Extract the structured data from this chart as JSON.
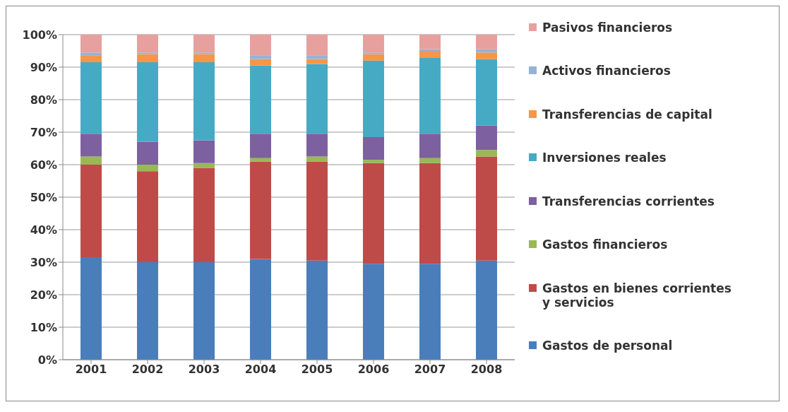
{
  "chart_data": {
    "type": "bar",
    "stacked": true,
    "categories": [
      "2001",
      "2002",
      "2003",
      "2004",
      "2005",
      "2006",
      "2007",
      "2008"
    ],
    "series": [
      {
        "name": "Gastos de personal",
        "color": "#4a7ebb",
        "values": [
          31.5,
          30,
          30,
          31,
          30.5,
          29.5,
          29.5,
          30.5
        ]
      },
      {
        "name": "Gastos en bienes corrientes y servicios",
        "color": "#be4b48",
        "values": [
          28.5,
          28,
          29,
          30,
          30.5,
          31,
          31,
          32
        ]
      },
      {
        "name": "Gastos financieros",
        "color": "#98b954",
        "values": [
          2.5,
          2,
          1.5,
          1,
          1.5,
          1,
          1.5,
          2
        ]
      },
      {
        "name": "Transferencias corrientes",
        "color": "#7d60a0",
        "values": [
          7,
          7,
          7,
          7.5,
          7,
          7,
          7.5,
          7.5
        ]
      },
      {
        "name": "Inversiones reales",
        "color": "#46aac5",
        "values": [
          22,
          24.5,
          24,
          21,
          21.5,
          23.5,
          23.5,
          20.5
        ]
      },
      {
        "name": "Transferencias de capital",
        "color": "#f79646",
        "values": [
          2,
          2.5,
          2.5,
          2,
          1.5,
          2,
          2,
          2
        ]
      },
      {
        "name": "Activos financieros",
        "color": "#95b3d7",
        "values": [
          1,
          0.5,
          0.5,
          1,
          1,
          0.5,
          0.5,
          1
        ]
      },
      {
        "name": "Pasivos financieros",
        "color": "#e6a09e",
        "values": [
          5.5,
          5.5,
          5.5,
          6.5,
          6.5,
          5.5,
          4.5,
          4.5
        ]
      }
    ],
    "ylim": [
      0,
      100
    ],
    "yticks": [
      {
        "value": 0,
        "label": "0%"
      },
      {
        "value": 10,
        "label": "10%"
      },
      {
        "value": 20,
        "label": "20%"
      },
      {
        "value": 30,
        "label": "30%"
      },
      {
        "value": 40,
        "label": "40%"
      },
      {
        "value": 50,
        "label": "50%"
      },
      {
        "value": 60,
        "label": "60%"
      },
      {
        "value": 70,
        "label": "70%"
      },
      {
        "value": 80,
        "label": "80%"
      },
      {
        "value": 90,
        "label": "90%"
      },
      {
        "value": 100,
        "label": "100%"
      }
    ],
    "grid": "y",
    "legend": "right"
  }
}
